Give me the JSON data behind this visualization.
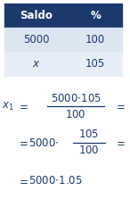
{
  "bg_color": "#ffffff",
  "dark_blue": "#1b3a6b",
  "header_bg": "#1b3a6b",
  "row1_bg": "#dce6f1",
  "row2_bg": "#e8eef7",
  "header_text": "#ffffff",
  "col1_header": "Saldo",
  "col2_header": "%",
  "row1_col1": "5000",
  "row1_col2": "100",
  "row2_col1": "x",
  "row2_col2": "105"
}
